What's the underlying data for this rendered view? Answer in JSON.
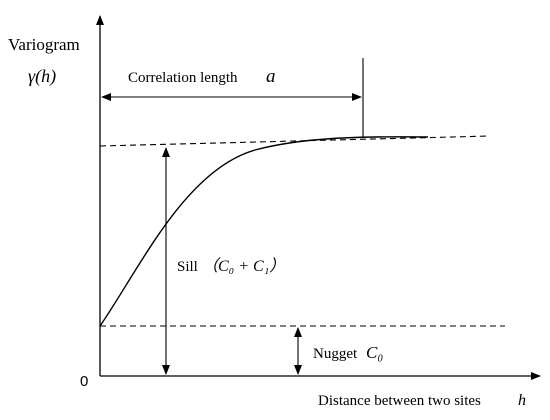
{
  "labels": {
    "y_axis_title": "Variogram",
    "y_axis_symbol": "γ(h)",
    "origin": "0",
    "x_axis_title": "Distance between two sites",
    "x_axis_symbol": "h",
    "correlation_text": "Correlation length",
    "correlation_symbol": "a",
    "sill_text": "Sill",
    "sill_formula": "（C₀ + C₁）",
    "nugget_text": "Nugget",
    "nugget_symbol": "C₀"
  },
  "colors": {
    "stroke": "#000000",
    "background": "#ffffff"
  }
}
